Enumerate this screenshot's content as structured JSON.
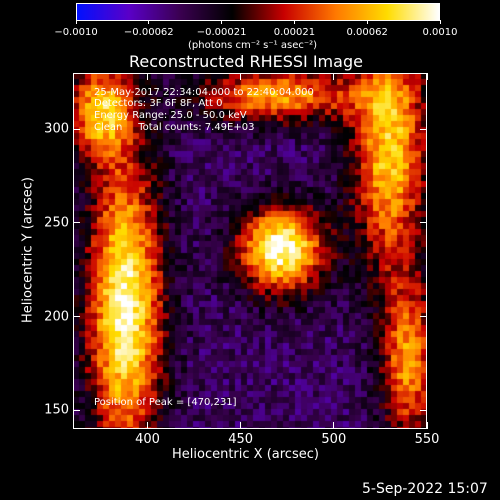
{
  "chart_data": {
    "type": "heatmap",
    "title": "Reconstructed RHESSI Image",
    "xlabel": "Heliocentric X (arcsec)",
    "ylabel": "Heliocentric Y (arcsec)",
    "xlim": [
      360,
      550
    ],
    "ylim": [
      140,
      330
    ],
    "x_ticks": [
      400,
      450,
      500,
      550
    ],
    "y_ticks": [
      150,
      200,
      250,
      300
    ],
    "colorbar": {
      "range": [
        -0.001,
        0.001
      ],
      "tick_labels": [
        "−0.0010",
        "−0.00062",
        "−0.00021",
        "0.00021",
        "0.00062",
        "0.0010"
      ],
      "unit_label": "(photons cm⁻² s⁻¹ asec⁻²)",
      "colors": [
        "#0010ff",
        "#5a00c8",
        "#3a0050",
        "#000000",
        "#c80000",
        "#ff7800",
        "#ffdc00",
        "#ffffff"
      ]
    },
    "annotations": [
      "25-May-2017 22:34:04.000 to 22:40:04.000",
      "Detectors: 3F 6F 8F, Att 0",
      "Energy Range: 25.0 - 50.0 keV",
      "Clean     Total counts: 7.49E+03"
    ],
    "peak_label": "Position of Peak = [470,231]",
    "peak": [
      470,
      231
    ],
    "sources": [
      {
        "x": 388,
        "y": 205,
        "amp": 0.00095,
        "sx": 14,
        "sy": 55
      },
      {
        "x": 375,
        "y": 310,
        "amp": 0.0006,
        "sx": 12,
        "sy": 18
      },
      {
        "x": 472,
        "y": 236,
        "amp": 0.001,
        "sx": 16,
        "sy": 16
      },
      {
        "x": 530,
        "y": 290,
        "amp": 0.0007,
        "sx": 14,
        "sy": 45
      },
      {
        "x": 470,
        "y": 318,
        "amp": 0.00055,
        "sx": 30,
        "sy": 10
      },
      {
        "x": 540,
        "y": 175,
        "amp": 0.0005,
        "sx": 10,
        "sy": 30
      }
    ]
  },
  "footer_date": "5-Sep-2022 15:07"
}
